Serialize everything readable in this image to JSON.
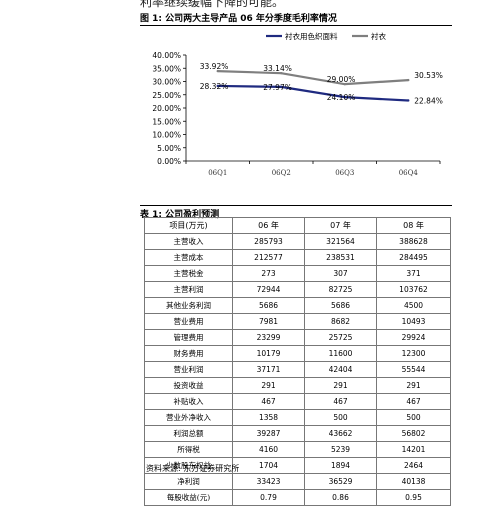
{
  "page": {
    "top_text": "利率继续缓幅下降的可能。",
    "figure_caption": "图 1:  公司两大主导产品 06 年分季度毛利率情况",
    "table_caption": "表 1:  公司盈利预测",
    "source": "资料来源:  东方证券研究所"
  },
  "chart_data": {
    "type": "line",
    "title": "",
    "xlabel": "",
    "ylabel": "",
    "categories": [
      "06Q1",
      "06Q2",
      "06Q3",
      "06Q4"
    ],
    "ylim": [
      0,
      40
    ],
    "yticks": [
      "0.00%",
      "5.00%",
      "10.00%",
      "15.00%",
      "20.00%",
      "25.00%",
      "30.00%",
      "35.00%",
      "40.00%"
    ],
    "grid": false,
    "legend_position": "top-right",
    "series": [
      {
        "name": "衬衣用色织面料",
        "color": "#1f2a80",
        "values": [
          28.32,
          27.97,
          24.1,
          22.84
        ],
        "labels": [
          "28.32%",
          "27.97%",
          "24.10%",
          "22.84%"
        ]
      },
      {
        "name": "衬衣",
        "color": "#7f7f7f",
        "values": [
          33.92,
          33.14,
          29.0,
          30.53
        ],
        "labels": [
          "33.92%",
          "33.14%",
          "29.00%",
          "30.53%"
        ]
      }
    ]
  },
  "table": {
    "headers": [
      "项目(万元)",
      "06 年",
      "07 年",
      "08 年"
    ],
    "rows": [
      [
        "主营收入",
        "285793",
        "321564",
        "388628"
      ],
      [
        "主营成本",
        "212577",
        "238531",
        "284495"
      ],
      [
        "主营税金",
        "273",
        "307",
        "371"
      ],
      [
        "主营利润",
        "72944",
        "82725",
        "103762"
      ],
      [
        "其他业务利润",
        "5686",
        "5686",
        "4500"
      ],
      [
        "营业费用",
        "7981",
        "8682",
        "10493"
      ],
      [
        "管理费用",
        "23299",
        "25725",
        "29924"
      ],
      [
        "财务费用",
        "10179",
        "11600",
        "12300"
      ],
      [
        "营业利润",
        "37171",
        "42404",
        "55544"
      ],
      [
        "投资收益",
        "291",
        "291",
        "291"
      ],
      [
        "补贴收入",
        "467",
        "467",
        "467"
      ],
      [
        "营业外净收入",
        "1358",
        "500",
        "500"
      ],
      [
        "利润总额",
        "39287",
        "43662",
        "56802"
      ],
      [
        "所得税",
        "4160",
        "5239",
        "14201"
      ],
      [
        "少数股东权益",
        "1704",
        "1894",
        "2464"
      ],
      [
        "净利润",
        "33423",
        "36529",
        "40138"
      ],
      [
        "每股收益(元)",
        "0.79",
        "0.86",
        "0.95"
      ]
    ]
  }
}
